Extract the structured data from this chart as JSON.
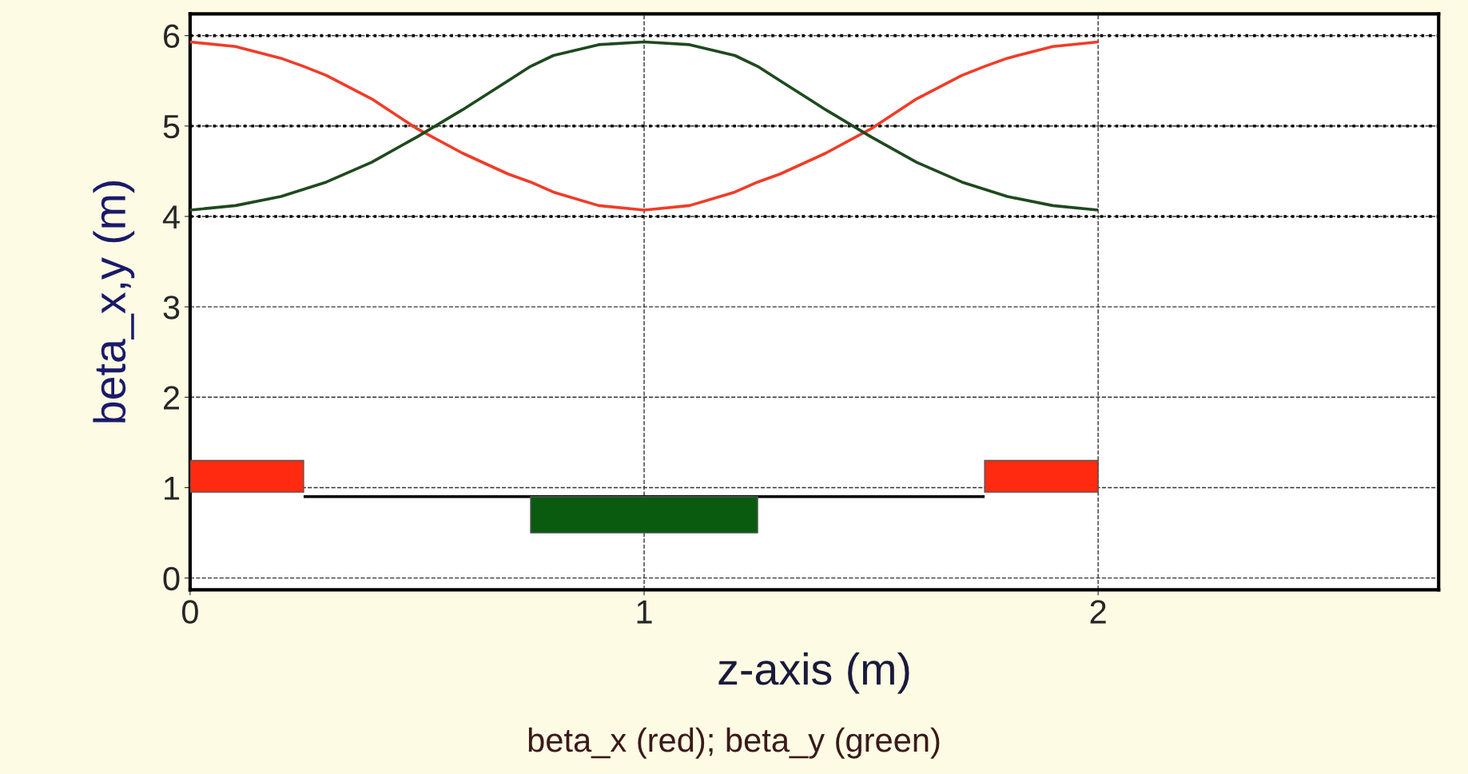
{
  "chart_data": {
    "type": "line",
    "xlabel": "z-axis (m)",
    "ylabel": "beta_x,y (m)",
    "annotations": [
      "beta_x (red); beta_y (green)"
    ],
    "xlim": [
      0,
      2.75
    ],
    "xticks": [
      0,
      1,
      2
    ],
    "ylim": [
      -0.13,
      6.24
    ],
    "yticks": [
      0,
      1,
      2,
      3,
      4,
      5,
      6
    ],
    "grid": true,
    "line_style": "solid",
    "series": [
      {
        "color": "#f03c28",
        "x": [
          0,
          0.1,
          0.2,
          0.25,
          0.3,
          0.4,
          0.5,
          0.6,
          0.7,
          0.75,
          0.8,
          0.9,
          1.0,
          1.1,
          1.2,
          1.25,
          1.3,
          1.4,
          1.5,
          1.6,
          1.7,
          1.75,
          1.8,
          1.9,
          2.0
        ],
        "values": [
          5.93,
          5.88,
          5.75,
          5.66,
          5.56,
          5.3,
          4.97,
          4.7,
          4.47,
          4.38,
          4.27,
          4.12,
          4.07,
          4.12,
          4.27,
          4.38,
          4.47,
          4.7,
          4.97,
          5.3,
          5.56,
          5.66,
          5.75,
          5.88,
          5.93
        ]
      },
      {
        "color": "#1e4a1e",
        "x": [
          0,
          0.1,
          0.2,
          0.25,
          0.3,
          0.4,
          0.5,
          0.6,
          0.7,
          0.75,
          0.8,
          0.9,
          1.0,
          1.1,
          1.2,
          1.25,
          1.3,
          1.4,
          1.5,
          1.6,
          1.7,
          1.75,
          1.8,
          1.9,
          2.0
        ],
        "values": [
          4.07,
          4.12,
          4.22,
          4.3,
          4.38,
          4.6,
          4.88,
          5.18,
          5.5,
          5.66,
          5.78,
          5.9,
          5.93,
          5.9,
          5.78,
          5.66,
          5.5,
          5.18,
          4.88,
          4.6,
          4.38,
          4.3,
          4.22,
          4.12,
          4.07
        ]
      },
      {
        "type": "area",
        "color": "#ff2a10",
        "x": [
          0,
          0,
          0.25,
          0.25
        ],
        "values": [
          0.95,
          1.3,
          1.3,
          0.95
        ]
      },
      {
        "type": "line",
        "color": "#000000",
        "x": [
          0.25,
          1.75
        ],
        "values": [
          0.9,
          0.9
        ]
      },
      {
        "type": "area",
        "color": "#0a5a10",
        "x": [
          0.75,
          0.75,
          1.25,
          1.25
        ],
        "values": [
          0.5,
          0.9,
          0.9,
          0.5
        ]
      },
      {
        "type": "area",
        "color": "#ff2a10",
        "x": [
          1.75,
          1.75,
          2.0,
          2.0
        ],
        "values": [
          0.95,
          1.3,
          1.3,
          0.95
        ]
      }
    ],
    "ref_lines": [
      {
        "axis": "y",
        "value": 4,
        "color": "#000000",
        "line_style": "dotted"
      },
      {
        "axis": "y",
        "value": 5,
        "color": "#000000",
        "line_style": "dotted"
      },
      {
        "axis": "y",
        "value": 6,
        "color": "#000000",
        "line_style": "dotted"
      }
    ]
  }
}
